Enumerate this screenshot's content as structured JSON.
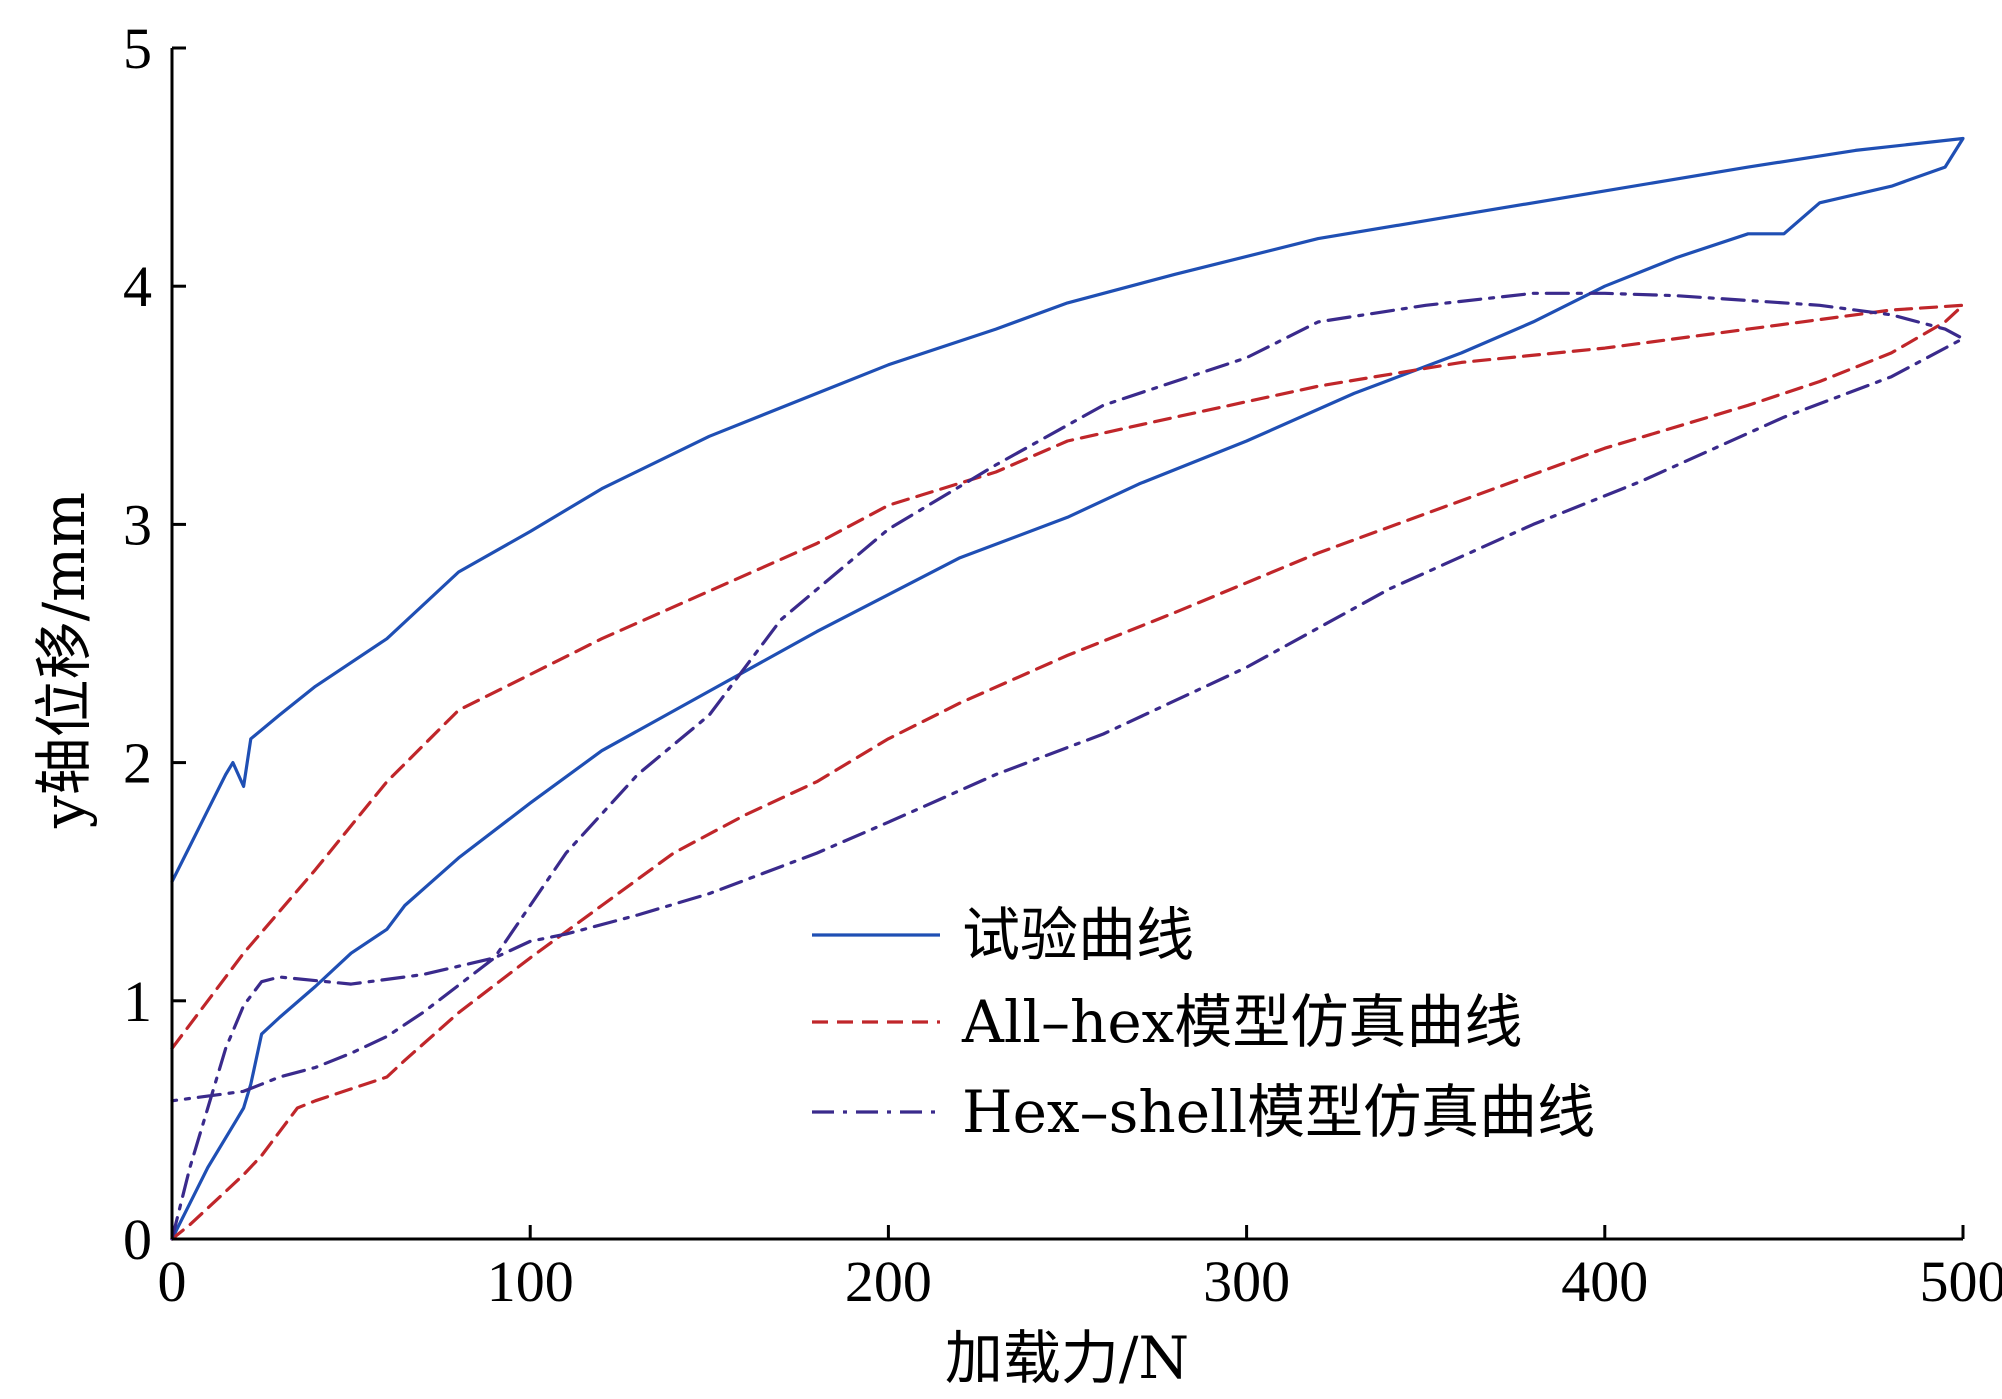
{
  "chart_data": {
    "type": "line",
    "xlabel": "加载力/N",
    "ylabel": "y轴位移/mm",
    "xlim": [
      0,
      500
    ],
    "ylim": [
      0,
      5
    ],
    "xticks": [
      0,
      100,
      200,
      300,
      400,
      500
    ],
    "yticks": [
      0,
      1,
      2,
      3,
      4,
      5
    ],
    "grid": false,
    "legend_position": "bottom-right",
    "series": [
      {
        "name": "试验曲线",
        "color": "#1f4fb4",
        "dash": "solid",
        "x": [
          0,
          5,
          10,
          15,
          17,
          20,
          22,
          30,
          40,
          60,
          80,
          100,
          120,
          150,
          180,
          200,
          230,
          250,
          280,
          320,
          360,
          400,
          440,
          470,
          500,
          495,
          480,
          460,
          450,
          440,
          420,
          400,
          380,
          360,
          330,
          300,
          270,
          250,
          220,
          180,
          150,
          120,
          100,
          80,
          65,
          60,
          50,
          40,
          30,
          25,
          22,
          20,
          18,
          10,
          5,
          0
        ],
        "y": [
          1.5,
          1.65,
          1.8,
          1.95,
          2.0,
          1.9,
          2.1,
          2.2,
          2.32,
          2.52,
          2.8,
          2.97,
          3.15,
          3.37,
          3.55,
          3.67,
          3.82,
          3.93,
          4.05,
          4.2,
          4.3,
          4.4,
          4.5,
          4.57,
          4.62,
          4.5,
          4.42,
          4.35,
          4.22,
          4.22,
          4.12,
          4.0,
          3.85,
          3.72,
          3.55,
          3.35,
          3.17,
          3.03,
          2.86,
          2.55,
          2.3,
          2.05,
          1.83,
          1.6,
          1.4,
          1.3,
          1.2,
          1.06,
          0.93,
          0.86,
          0.65,
          0.55,
          0.5,
          0.3,
          0.15,
          0.0
        ]
      },
      {
        "name": "All–hex模型仿真曲线",
        "color": "#c0262a",
        "dash": "dashed",
        "x": [
          0,
          10,
          20,
          40,
          60,
          80,
          100,
          120,
          150,
          180,
          200,
          230,
          250,
          280,
          320,
          360,
          400,
          440,
          480,
          500,
          495,
          480,
          460,
          440,
          400,
          360,
          320,
          280,
          250,
          220,
          200,
          180,
          160,
          140,
          120,
          100,
          80,
          65,
          60,
          50,
          40,
          35,
          30,
          25,
          20,
          15,
          10,
          5,
          0
        ],
        "y": [
          0.8,
          1.0,
          1.2,
          1.55,
          1.92,
          2.22,
          2.37,
          2.52,
          2.72,
          2.92,
          3.08,
          3.22,
          3.35,
          3.45,
          3.58,
          3.68,
          3.74,
          3.82,
          3.9,
          3.92,
          3.85,
          3.72,
          3.6,
          3.5,
          3.32,
          3.1,
          2.88,
          2.63,
          2.45,
          2.25,
          2.1,
          1.92,
          1.78,
          1.62,
          1.4,
          1.18,
          0.95,
          0.75,
          0.68,
          0.63,
          0.58,
          0.55,
          0.45,
          0.35,
          0.27,
          0.2,
          0.13,
          0.06,
          0.0
        ]
      },
      {
        "name": "Hex–shell模型仿真曲线",
        "color": "#3a2a8c",
        "dash": "dashdot",
        "x": [
          0,
          5,
          10,
          15,
          20,
          25,
          30,
          50,
          70,
          90,
          100,
          110,
          130,
          150,
          180,
          200,
          230,
          260,
          300,
          340,
          380,
          410,
          450,
          480,
          500,
          495,
          480,
          460,
          440,
          420,
          400,
          380,
          350,
          320,
          300,
          260,
          230,
          200,
          170,
          150,
          130,
          110,
          90,
          70,
          60,
          50,
          40,
          30,
          25,
          20,
          10,
          0
        ],
        "y": [
          0.0,
          0.3,
          0.55,
          0.8,
          0.98,
          1.08,
          1.1,
          1.07,
          1.11,
          1.18,
          1.25,
          1.28,
          1.36,
          1.45,
          1.62,
          1.75,
          1.95,
          2.12,
          2.4,
          2.73,
          3.0,
          3.18,
          3.45,
          3.62,
          3.78,
          3.82,
          3.88,
          3.92,
          3.94,
          3.96,
          3.97,
          3.97,
          3.92,
          3.85,
          3.7,
          3.5,
          3.25,
          2.98,
          2.6,
          2.2,
          1.95,
          1.62,
          1.18,
          0.95,
          0.85,
          0.78,
          0.72,
          0.68,
          0.65,
          0.62,
          0.6,
          0.58
        ]
      }
    ]
  }
}
